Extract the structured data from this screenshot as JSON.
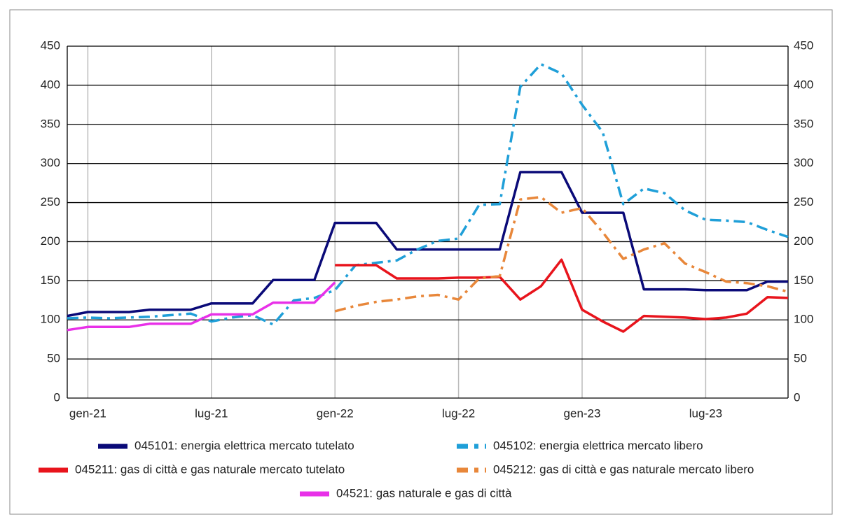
{
  "chart_data": {
    "type": "line",
    "categories": [
      null,
      "gen-21",
      null,
      null,
      null,
      null,
      null,
      "lug-21",
      null,
      null,
      null,
      null,
      null,
      "gen-22",
      null,
      null,
      null,
      null,
      null,
      "lug-22",
      null,
      null,
      null,
      null,
      null,
      "gen-23",
      null,
      null,
      null,
      null,
      null,
      "lug-23",
      null,
      null,
      null,
      null
    ],
    "series": [
      {
        "name": "045101: energia elettrica mercato tutelato",
        "color": "#0a0a78",
        "dash": "solid",
        "values": [
          105,
          110,
          110,
          110,
          113,
          113,
          113,
          121,
          121,
          121,
          151,
          151,
          151,
          224,
          224,
          224,
          190,
          190,
          190,
          190,
          190,
          190,
          289,
          289,
          289,
          237,
          237,
          237,
          139,
          139,
          139,
          138,
          138,
          138,
          149,
          149
        ]
      },
      {
        "name": "045102: energia elettrica mercato libero",
        "color": "#1f9fd8",
        "dash": "dashdot",
        "values": [
          102,
          103,
          102,
          103,
          104,
          106,
          108,
          98,
          103,
          106,
          94,
          125,
          128,
          138,
          170,
          173,
          176,
          190,
          201,
          204,
          247,
          248,
          398,
          427,
          415,
          375,
          340,
          248,
          268,
          262,
          240,
          228,
          227,
          225,
          215,
          206
        ]
      },
      {
        "name": "045211: gas di città e gas naturale mercato tutelato",
        "color": "#e8141c",
        "dash": "solid",
        "values": [
          null,
          null,
          null,
          null,
          null,
          null,
          null,
          null,
          null,
          null,
          null,
          null,
          null,
          170,
          170,
          170,
          153,
          153,
          153,
          154,
          154,
          155,
          126,
          143,
          177,
          113,
          98,
          85,
          105,
          104,
          103,
          101,
          103,
          108,
          129,
          128
        ]
      },
      {
        "name": "045212: gas di città e gas naturale mercato libero",
        "color": "#e8873a",
        "dash": "dashdot",
        "values": [
          null,
          null,
          null,
          null,
          null,
          null,
          null,
          null,
          null,
          null,
          null,
          null,
          null,
          111,
          118,
          123,
          126,
          130,
          132,
          126,
          153,
          156,
          254,
          257,
          237,
          243,
          212,
          178,
          190,
          198,
          172,
          161,
          149,
          147,
          143,
          136
        ]
      },
      {
        "name": "04521: gas naturale e gas di città",
        "color": "#e830e8",
        "dash": "solid",
        "values": [
          87,
          91,
          91,
          91,
          95,
          95,
          95,
          107,
          107,
          107,
          122,
          122,
          122,
          148,
          null,
          null,
          null,
          null,
          null,
          null,
          null,
          null,
          null,
          null,
          null,
          null,
          null,
          null,
          null,
          null,
          null,
          null,
          null,
          null,
          null,
          null
        ]
      }
    ],
    "ylim": [
      0,
      450
    ],
    "yticks": [
      0,
      50,
      100,
      150,
      200,
      250,
      300,
      350,
      400,
      450
    ],
    "y2lim": [
      0,
      450
    ],
    "y2ticks": [
      0,
      50,
      100,
      150,
      200,
      250,
      300,
      350,
      400,
      450
    ],
    "grid": true
  }
}
